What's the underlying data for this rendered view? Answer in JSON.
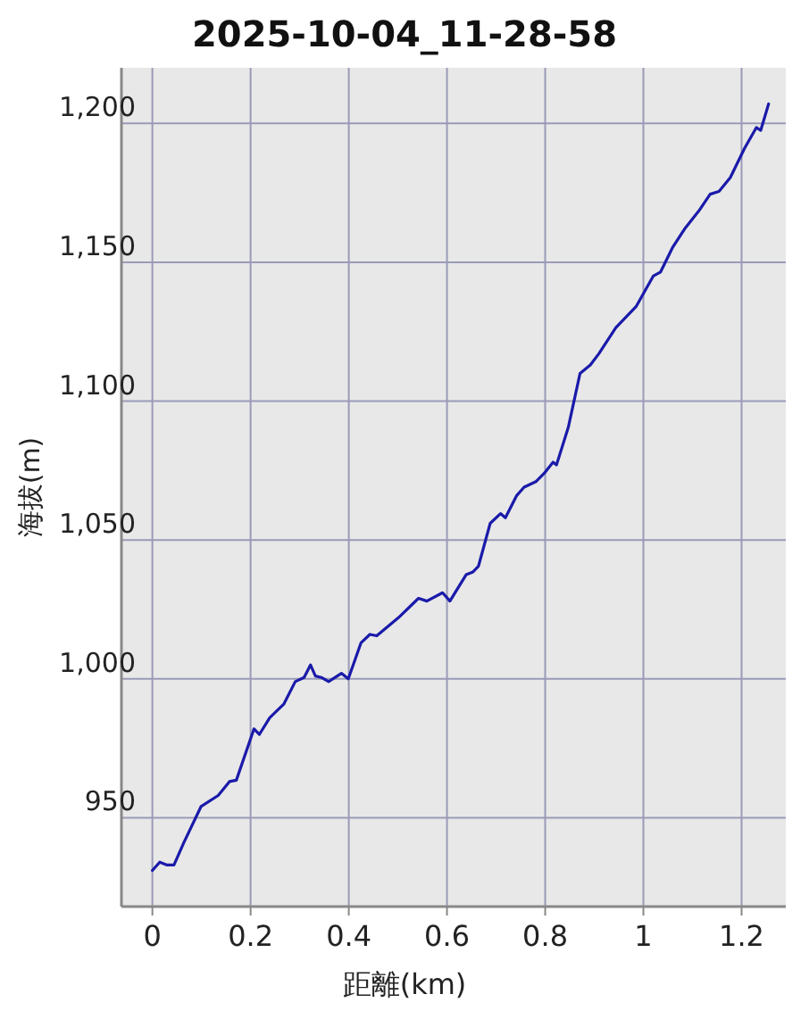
{
  "chart_data": {
    "type": "line",
    "title": "2025-10-04_11-28-58",
    "xlabel": "距離(km)",
    "ylabel": "海拔(m)",
    "xlim": [
      -0.063,
      1.29
    ],
    "ylim": [
      918,
      1220
    ],
    "xticks": [
      0,
      0.2,
      0.4,
      0.6,
      0.8,
      1,
      1.2
    ],
    "yticks": [
      950,
      {
        "value": 1000,
        "label": "1,000"
      },
      {
        "value": 1050,
        "label": "1,050"
      },
      {
        "value": 1100,
        "label": "1,100"
      },
      {
        "value": 1150,
        "label": "1,150"
      },
      {
        "value": 1200,
        "label": "1,200"
      }
    ],
    "grid": true,
    "series": [
      {
        "color": "#1a1aaa",
        "x": [
          0,
          0.015,
          0.029,
          0.044,
          0.064,
          0.099,
          0.134,
          0.157,
          0.171,
          0.207,
          0.218,
          0.239,
          0.268,
          0.291,
          0.309,
          0.322,
          0.332,
          0.344,
          0.359,
          0.385,
          0.399,
          0.425,
          0.443,
          0.457,
          0.501,
          0.542,
          0.559,
          0.591,
          0.606,
          0.639,
          0.653,
          0.664,
          0.688,
          0.709,
          0.719,
          0.742,
          0.757,
          0.781,
          0.798,
          0.816,
          0.823,
          0.847,
          0.871,
          0.892,
          0.909,
          0.944,
          0.985,
          1.02,
          1.035,
          1.06,
          1.084,
          1.113,
          1.136,
          1.154,
          1.177,
          1.206,
          1.23,
          1.239,
          1.255
        ],
        "values": [
          931,
          934,
          933,
          933,
          941,
          954,
          958,
          963,
          963.5,
          982,
          980,
          986,
          991,
          999,
          1000.5,
          1005,
          1001,
          1000.5,
          999,
          1002,
          1000,
          1013,
          1016,
          1015.5,
          1022,
          1029,
          1028,
          1031,
          1028,
          1037.5,
          1038.5,
          1040.5,
          1056,
          1059.5,
          1058,
          1066,
          1069,
          1071,
          1074,
          1078,
          1077,
          1090.5,
          1110,
          1113,
          1117,
          1126.5,
          1134,
          1145,
          1146.5,
          1155.5,
          1162,
          1168.5,
          1174.5,
          1175.5,
          1180.5,
          1191,
          1198.5,
          1197.5,
          1207
        ]
      }
    ]
  }
}
